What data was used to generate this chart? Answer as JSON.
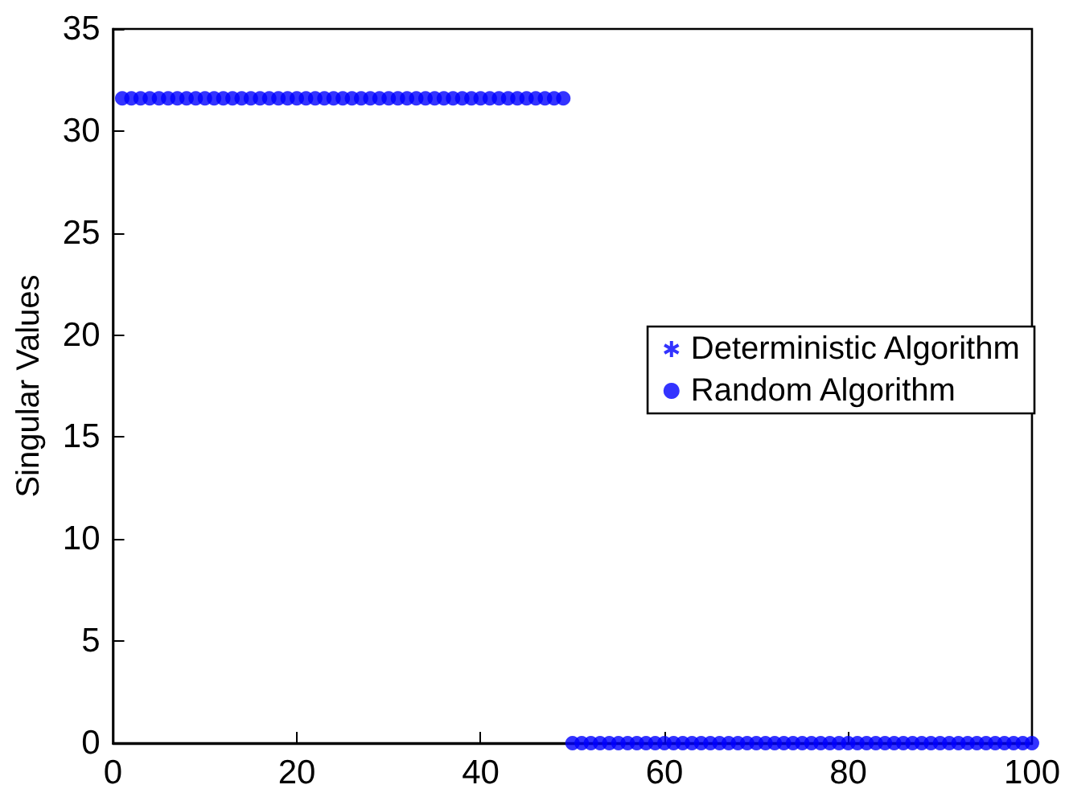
{
  "chart_data": {
    "type": "scatter",
    "ylabel": "Singular Values",
    "xlim": [
      0,
      100
    ],
    "xticks": [
      0,
      20,
      40,
      60,
      80,
      100
    ],
    "ylim": [
      0,
      35
    ],
    "yticks": [
      0,
      5,
      10,
      15,
      20,
      25,
      30,
      35
    ],
    "grid": false,
    "legend": "right",
    "series": [
      {
        "name": "Deterministic Algorithm",
        "color": "#0000ff",
        "marker": "cross"
      },
      {
        "name": "Random Algorithm",
        "color": "#0000ff",
        "marker": "circle",
        "x": [
          1,
          2,
          3,
          4,
          5,
          6,
          7,
          8,
          9,
          10,
          11,
          12,
          13,
          14,
          15,
          16,
          17,
          18,
          19,
          20,
          21,
          22,
          23,
          24,
          25,
          26,
          27,
          28,
          29,
          30,
          31,
          32,
          33,
          34,
          35,
          36,
          37,
          38,
          39,
          40,
          41,
          42,
          43,
          44,
          45,
          46,
          47,
          48,
          49,
          50,
          51,
          52,
          53,
          54,
          55,
          56,
          57,
          58,
          59,
          60,
          61,
          62,
          63,
          64,
          65,
          66,
          67,
          68,
          69,
          70,
          71,
          72,
          73,
          74,
          75,
          76,
          77,
          78,
          79,
          80,
          81,
          82,
          83,
          84,
          85,
          86,
          87,
          88,
          89,
          90,
          91,
          92,
          93,
          94,
          95,
          96,
          97,
          98,
          99,
          100
        ],
        "values": [
          31.6,
          31.6,
          31.6,
          31.6,
          31.6,
          31.6,
          31.6,
          31.6,
          31.6,
          31.6,
          31.6,
          31.6,
          31.6,
          31.6,
          31.6,
          31.6,
          31.6,
          31.6,
          31.6,
          31.6,
          31.6,
          31.6,
          31.6,
          31.6,
          31.6,
          31.6,
          31.6,
          31.6,
          31.6,
          31.6,
          31.6,
          31.6,
          31.6,
          31.6,
          31.6,
          31.6,
          31.6,
          31.6,
          31.6,
          31.6,
          31.6,
          31.6,
          31.6,
          31.6,
          31.6,
          31.6,
          31.6,
          31.6,
          31.6,
          0,
          0,
          0,
          0,
          0,
          0,
          0,
          0,
          0,
          0,
          0,
          0,
          0,
          0,
          0,
          0,
          0,
          0,
          0,
          0,
          0,
          0,
          0,
          0,
          0,
          0,
          0,
          0,
          0,
          0,
          0,
          0,
          0,
          0,
          0,
          0,
          0,
          0,
          0,
          0,
          0,
          0,
          0,
          0,
          0,
          0,
          0,
          0,
          0,
          0,
          0
        ]
      }
    ]
  }
}
